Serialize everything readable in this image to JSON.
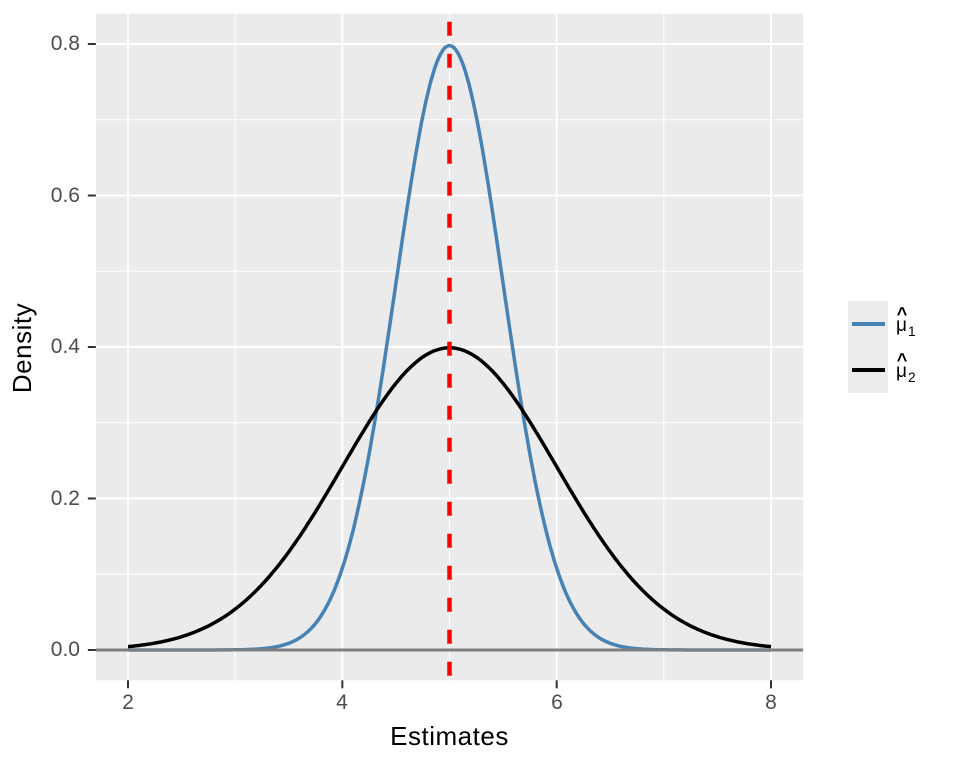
{
  "chart_data": {
    "type": "line",
    "title": "",
    "xlabel": "Estimates",
    "ylabel": "Density",
    "xlim": [
      2,
      8
    ],
    "ylim": [
      0,
      0.8
    ],
    "x_ticks": {
      "values": [
        2,
        4,
        6,
        8
      ],
      "labels": [
        "2",
        "4",
        "6",
        "8"
      ]
    },
    "y_ticks": {
      "values": [
        0,
        0.2,
        0.4,
        0.6,
        0.8
      ],
      "labels": [
        "0.0",
        "0.2",
        "0.4",
        "0.6",
        "0.8"
      ]
    },
    "x_minor": [
      3,
      5,
      7
    ],
    "y_minor": [
      0.1,
      0.3,
      0.5,
      0.7
    ],
    "grid": "white major+minor gridlines on gray panel",
    "panel_bg": "#EBEBEB",
    "legend_position": "right-middle",
    "series": [
      {
        "name": "mu-hat-1",
        "legend_label": "mu-hat 1",
        "color": "#4682B4",
        "curve": "normal-pdf",
        "mean": 5,
        "sd": 0.5,
        "peak_y": 0.7979,
        "x": [
          2,
          2.5,
          3,
          3.5,
          4,
          4.5,
          5,
          5.5,
          6,
          6.5,
          7,
          7.5,
          8
        ],
        "y": [
          0.0,
          0.0,
          0.0003,
          0.0089,
          0.108,
          0.4839,
          0.7979,
          0.4839,
          0.108,
          0.0089,
          0.0003,
          0.0,
          0.0
        ]
      },
      {
        "name": "mu-hat-2",
        "legend_label": "mu-hat 2",
        "color": "#000000",
        "curve": "normal-pdf",
        "mean": 5,
        "sd": 1,
        "peak_y": 0.3989,
        "x": [
          2,
          2.5,
          3,
          3.5,
          4,
          4.5,
          5,
          5.5,
          6,
          6.5,
          7,
          7.5,
          8
        ],
        "y": [
          0.0044,
          0.0175,
          0.054,
          0.1295,
          0.242,
          0.3521,
          0.3989,
          0.3521,
          0.242,
          0.1295,
          0.054,
          0.0175,
          0.0044
        ]
      }
    ],
    "vline": {
      "x": 5,
      "color": "#FF0000",
      "linetype": "dashed",
      "width": 4.5
    },
    "hline": {
      "y": 0,
      "color": "#7F7F7F",
      "linetype": "solid",
      "width": 3
    }
  },
  "axes": {
    "x_title": "Estimates",
    "y_title": "Density",
    "x_tick_labels": [
      "2",
      "4",
      "6",
      "8"
    ],
    "y_tick_labels": [
      "0.0",
      "0.2",
      "0.4",
      "0.6",
      "0.8"
    ]
  },
  "legend": {
    "items": [
      {
        "mu": "μ",
        "hat": "^",
        "sub": "1",
        "color": "#4682B4"
      },
      {
        "mu": "μ",
        "hat": "^",
        "sub": "2",
        "color": "#000000"
      }
    ]
  },
  "colors": {
    "panel_bg": "#EBEBEB",
    "grid": "#FFFFFF",
    "tick_text": "#4D4D4D",
    "tick_mark": "#333333",
    "axis_title": "#000000",
    "legend_key_bg": "#ECECEC"
  }
}
